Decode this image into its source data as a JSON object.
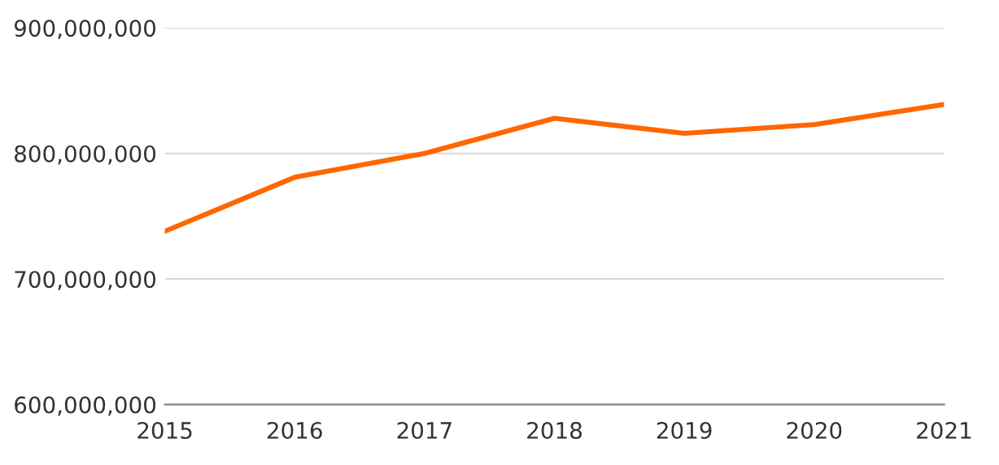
{
  "chart_data": {
    "type": "line",
    "x": [
      2015,
      2016,
      2017,
      2018,
      2019,
      2020,
      2021
    ],
    "series": [
      {
        "color": "#ff6600",
        "values": [
          738000000,
          781000000,
          800000000,
          828000000,
          816000000,
          823000000,
          839000000
        ]
      }
    ],
    "xlim": [
      2015,
      2021
    ],
    "xticks": [
      2015,
      2016,
      2017,
      2018,
      2019,
      2020,
      2021
    ],
    "ylim": [
      600000000,
      900000000
    ],
    "yticks": [
      {
        "value": 600000000,
        "label": "600,000,000"
      },
      {
        "value": 700000000,
        "label": "700,000,000"
      },
      {
        "value": 800000000,
        "label": "800,000,000"
      },
      {
        "value": 900000000,
        "label": "900,000,000"
      }
    ],
    "grid": "y",
    "marker": "none",
    "line_style": "solid",
    "legend": false
  }
}
